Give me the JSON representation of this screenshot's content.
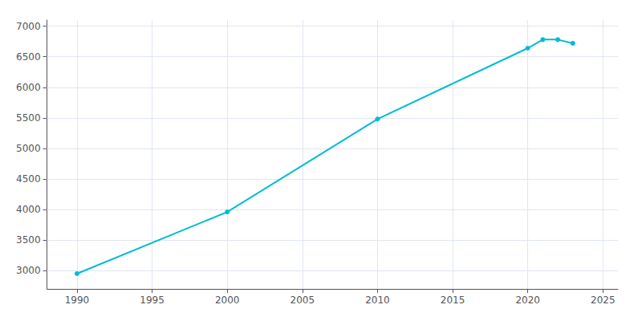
{
  "chart_data": {
    "type": "line",
    "x": [
      1990,
      2000,
      2010,
      2020,
      2021,
      2022,
      2023
    ],
    "values": [
      2950,
      3960,
      5480,
      6640,
      6780,
      6780,
      6720
    ],
    "color": "#00BCD4",
    "marker": "circle",
    "xlim": [
      1988,
      2026
    ],
    "ylim": [
      2700,
      7100
    ],
    "xticks": [
      1990,
      1995,
      2000,
      2005,
      2010,
      2015,
      2020,
      2025
    ],
    "yticks": [
      3000,
      3500,
      4000,
      4500,
      5000,
      5500,
      6000,
      6500,
      7000
    ],
    "grid": true
  }
}
